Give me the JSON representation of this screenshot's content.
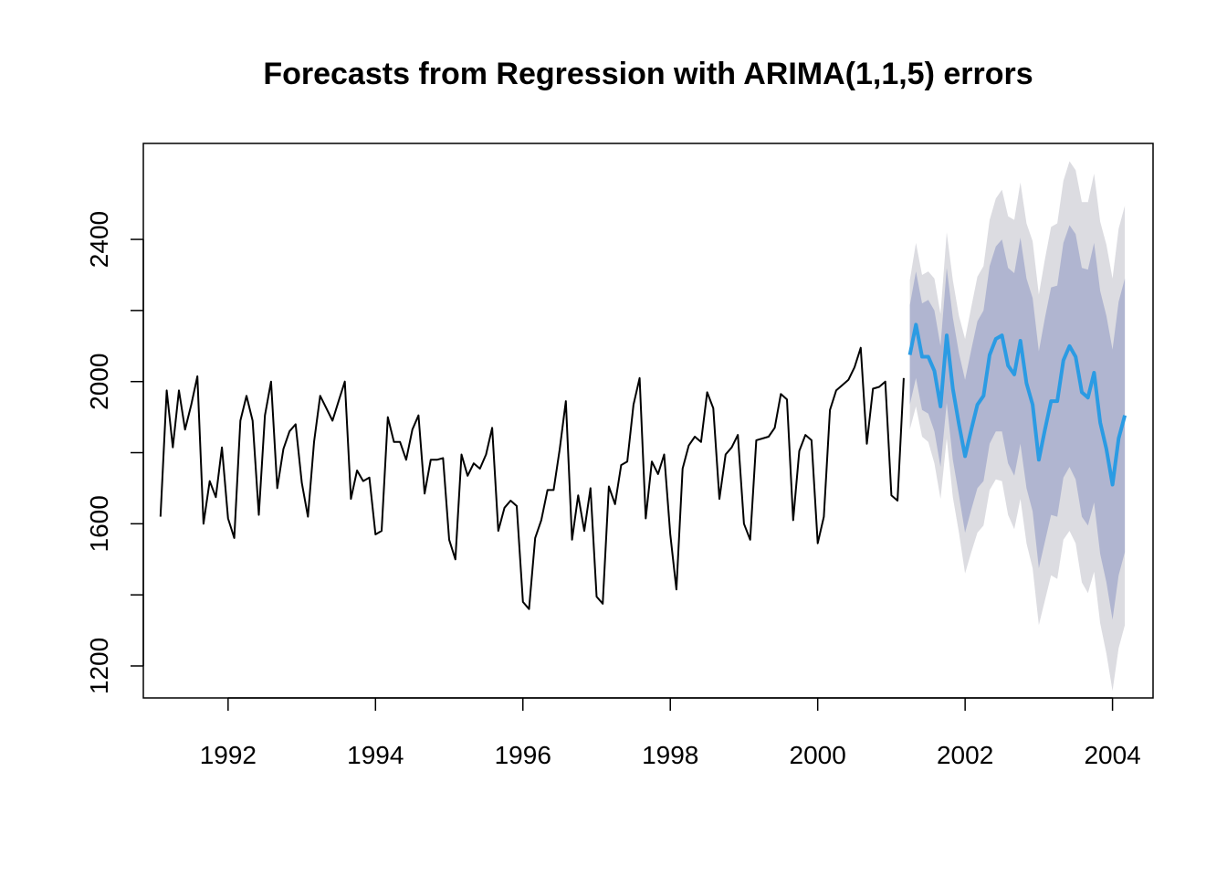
{
  "chart_data": {
    "type": "line",
    "title": "Forecasts from Regression with ARIMA(1,1,5) errors",
    "xlabel": "",
    "ylabel": "",
    "xlim": [
      1990.85,
      2004.55
    ],
    "ylim": [
      1110,
      2670
    ],
    "x_ticks": [
      1992,
      1994,
      1996,
      1998,
      2000,
      2002,
      2004
    ],
    "y_ticks": [
      1200,
      1600,
      2000,
      2400
    ],
    "grid": false,
    "legend": "none",
    "colors": {
      "history": "#000000",
      "forecast": "#2b9be3",
      "band80": "#b0b5d0",
      "band95": "#dcdce1"
    },
    "history": {
      "start": 1991.0833,
      "step": 0.0833333,
      "values": [
        1620,
        1975,
        1815,
        1975,
        1865,
        1935,
        2015,
        1600,
        1720,
        1675,
        1815,
        1615,
        1560,
        1890,
        1960,
        1890,
        1625,
        1905,
        2000,
        1700,
        1810,
        1860,
        1880,
        1715,
        1620,
        1830,
        1960,
        1925,
        1890,
        1945,
        2000,
        1670,
        1750,
        1720,
        1730,
        1570,
        1580,
        1900,
        1830,
        1830,
        1780,
        1865,
        1905,
        1685,
        1780,
        1780,
        1785,
        1555,
        1500,
        1795,
        1735,
        1770,
        1755,
        1795,
        1870,
        1580,
        1645,
        1665,
        1650,
        1380,
        1360,
        1560,
        1610,
        1695,
        1695,
        1810,
        1945,
        1555,
        1680,
        1580,
        1700,
        1395,
        1375,
        1705,
        1655,
        1765,
        1775,
        1935,
        2010,
        1615,
        1775,
        1740,
        1795,
        1570,
        1415,
        1755,
        1820,
        1845,
        1830,
        1970,
        1925,
        1670,
        1795,
        1815,
        1850,
        1600,
        1555,
        1835,
        1840,
        1845,
        1870,
        1965,
        1950,
        1610,
        1805,
        1850,
        1835,
        1545,
        1620,
        1920,
        1975,
        1990,
        2005,
        2040,
        2095,
        1825,
        1980,
        1985,
        2000,
        1680,
        1665,
        2010
      ]
    },
    "forecast": {
      "start": 2001.25,
      "step": 0.0833333,
      "mean": [
        2075,
        2160,
        2070,
        2070,
        2030,
        1930,
        2130,
        1980,
        1880,
        1790,
        1865,
        1935,
        1960,
        2075,
        2120,
        2130,
        2045,
        2020,
        2115,
        1995,
        1935,
        1780,
        1865,
        1945,
        1945,
        2060,
        2100,
        2070,
        1970,
        1955,
        2025,
        1885,
        1810,
        1710,
        1840,
        1905
      ],
      "lo80": [
        1935,
        2010,
        1920,
        1910,
        1860,
        1760,
        1940,
        1780,
        1680,
        1575,
        1640,
        1700,
        1720,
        1825,
        1860,
        1860,
        1770,
        1735,
        1825,
        1700,
        1635,
        1475,
        1550,
        1625,
        1620,
        1730,
        1760,
        1725,
        1620,
        1595,
        1660,
        1515,
        1435,
        1330,
        1455,
        1520
      ],
      "hi80": [
        2215,
        2310,
        2220,
        2230,
        2200,
        2100,
        2320,
        2180,
        2080,
        2005,
        2090,
        2170,
        2200,
        2325,
        2380,
        2400,
        2320,
        2305,
        2405,
        2290,
        2235,
        2085,
        2180,
        2265,
        2270,
        2390,
        2440,
        2415,
        2320,
        2315,
        2390,
        2255,
        2185,
        2090,
        2225,
        2290
      ],
      "lo95": [
        1865,
        1930,
        1845,
        1830,
        1770,
        1670,
        1840,
        1675,
        1575,
        1460,
        1520,
        1575,
        1595,
        1695,
        1725,
        1720,
        1625,
        1585,
        1670,
        1545,
        1475,
        1315,
        1385,
        1455,
        1445,
        1555,
        1580,
        1545,
        1435,
        1405,
        1465,
        1320,
        1235,
        1130,
        1250,
        1315
      ],
      "hi95": [
        2285,
        2390,
        2300,
        2310,
        2290,
        2190,
        2420,
        2285,
        2185,
        2120,
        2210,
        2295,
        2325,
        2455,
        2515,
        2540,
        2465,
        2455,
        2560,
        2445,
        2395,
        2245,
        2345,
        2435,
        2445,
        2565,
        2620,
        2595,
        2505,
        2505,
        2585,
        2450,
        2385,
        2290,
        2430,
        2495
      ]
    }
  }
}
